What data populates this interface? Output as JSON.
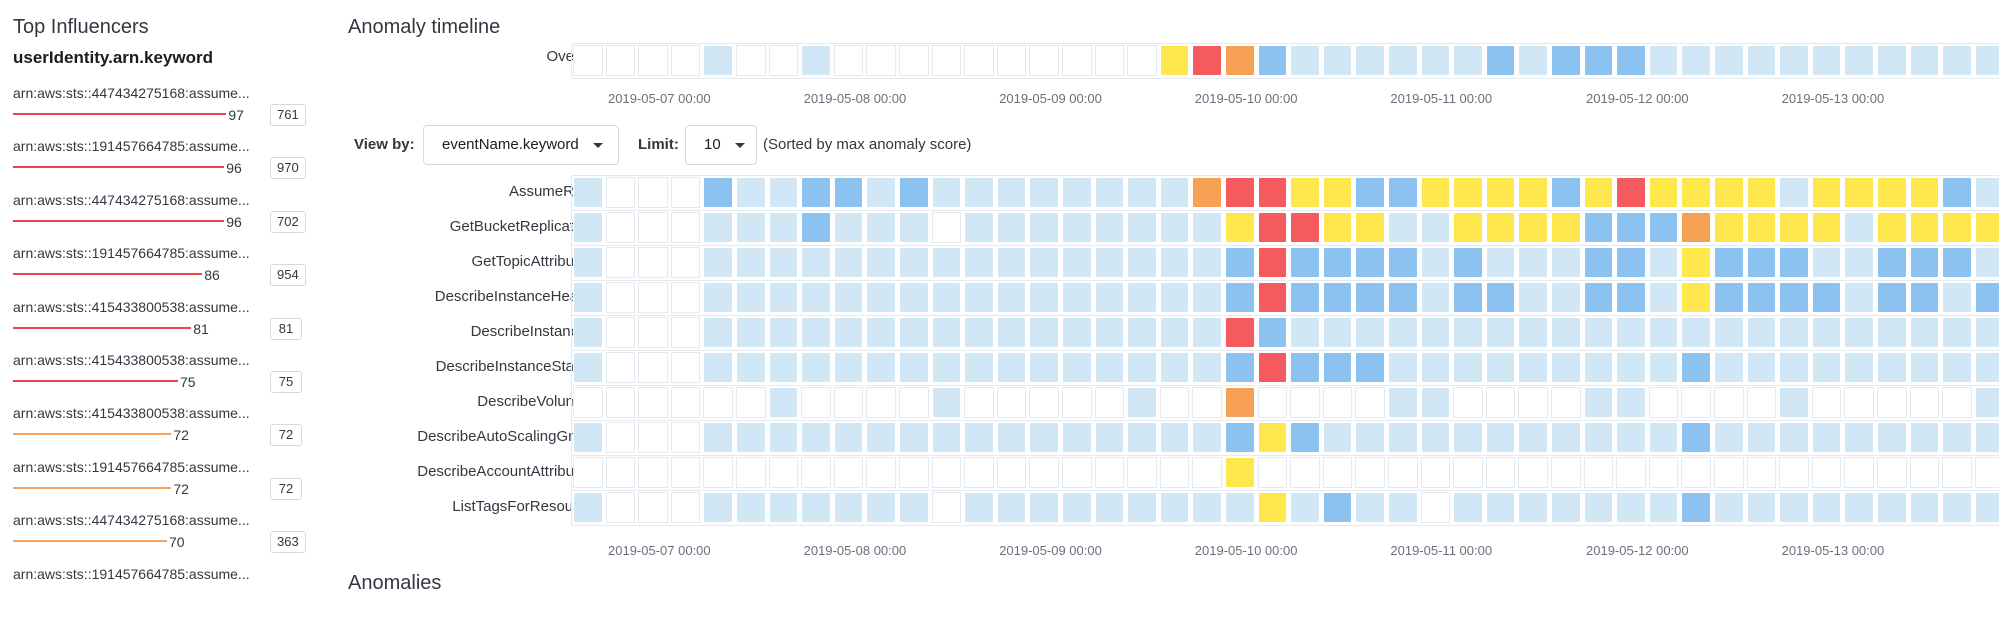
{
  "left": {
    "title": "Top Influencers",
    "field": "userIdentity.arn.keyword",
    "influencers": [
      {
        "label": "arn:aws:sts::447434275168:assume...",
        "score": "97",
        "count": "761",
        "level": "critical"
      },
      {
        "label": "arn:aws:sts::191457664785:assume...",
        "score": "96",
        "count": "970",
        "level": "critical"
      },
      {
        "label": "arn:aws:sts::447434275168:assume...",
        "score": "96",
        "count": "702",
        "level": "critical"
      },
      {
        "label": "arn:aws:sts::191457664785:assume...",
        "score": "86",
        "count": "954",
        "level": "critical"
      },
      {
        "label": "arn:aws:sts::415433800538:assume...",
        "score": "81",
        "count": "81",
        "level": "critical"
      },
      {
        "label": "arn:aws:sts::415433800538:assume...",
        "score": "75",
        "count": "75",
        "level": "critical"
      },
      {
        "label": "arn:aws:sts::415433800538:assume...",
        "score": "72",
        "count": "72",
        "level": "major"
      },
      {
        "label": "arn:aws:sts::191457664785:assume...",
        "score": "72",
        "count": "72",
        "level": "major"
      },
      {
        "label": "arn:aws:sts::447434275168:assume...",
        "score": "70",
        "count": "363",
        "level": "major"
      },
      {
        "label": "arn:aws:sts::191457664785:assume...",
        "score": "",
        "count": "",
        "level": "major"
      }
    ]
  },
  "timeline": {
    "title": "Anomaly timeline",
    "overall_label": "Overall",
    "overall_row": "wwwwLwwLwwwwwwwwwwYROBLLLLLLBLBBBLLLLLLLLLLLL",
    "ticks": [
      "2019-05-07 00:00",
      "2019-05-08 00:00",
      "2019-05-09 00:00",
      "2019-05-10 00:00",
      "2019-05-11 00:00",
      "2019-05-12 00:00",
      "2019-05-13 00:00"
    ],
    "view_by_label": "View by:",
    "view_by_value": "eventName.keyword",
    "limit_label": "Limit:",
    "limit_value": "10",
    "sort_note": "(Sorted by max anomaly score)",
    "rows": [
      {
        "label": "AssumeRole",
        "cells": "LwwwBLLBBLBLLLLLLLLORRYYBBYYYYBYRYYYYLYYYYBL"
      },
      {
        "label": "GetBucketReplication",
        "cells": "LwwwLLLBLLLwLLLLLLLLYRRYYLLYYYYBBBOYYYYLYYYYLw"
      },
      {
        "label": "GetTopicAttributes",
        "cells": "LwwwLLLLLLLLLLLLLLLLBRBBBBLBLLLBBLYBBBLLBBBLL"
      },
      {
        "label": "DescribeInstanceHealth",
        "cells": "LwwwLLLLLLLLLLLLLLLLBRBBBBLBBLLBBLYBBBBLBBLBL"
      },
      {
        "label": "DescribeInstances",
        "cells": "LwwwLLLLLLLLLLLLLLLLRBLLLLLLLLLLLLLLLLLLLLLLL"
      },
      {
        "label": "DescribeInstanceStatus",
        "cells": "LwwwLLLLLLLLLLLLLLLLBRBBBLLLLLLLLLBLLLLLLLLLw"
      },
      {
        "label": "DescribeVolumes",
        "cells": "wwwwwwLwwwwLwwwwwLwwOwwwwLLwwwwLLwwwwLwwwwwLL"
      },
      {
        "label": "DescribeAutoScalingGro...",
        "cells": "LwwwLLLLLLLLLLLLLLLLBYBLLLLLLLLLLLBLLLLLLLLLL"
      },
      {
        "label": "DescribeAccountAttributes",
        "cells": "wwwwwwwwwwwwwwwwwwwwYwwwwwwwwwwwwwwwwwwwwwwww"
      },
      {
        "label": "ListTagsForResource",
        "cells": "LwwwLLLLLLLwLLLLLLLLLYLBLLwLLLLLLLBLLLLLLLLLL"
      }
    ]
  },
  "colors": {
    "L": "#d2e7f6",
    "B": "#8bc2ef",
    "Y": "#fde74c",
    "O": "#f6a153",
    "R": "#f55b5e",
    "w": "#ffffff",
    "critical": "#e7464e",
    "major": "#f5a35c"
  },
  "anomalies_heading": "Anomalies"
}
